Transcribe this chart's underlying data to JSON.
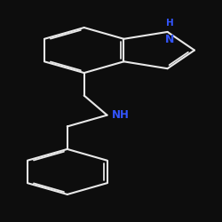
{
  "background_color": "#0d0d0d",
  "bond_color": "#e8e8e8",
  "atom_color_N": "#3355ff",
  "bond_width": 1.5,
  "font_size_N": 8.5,
  "indole_N_label": "N",
  "indole_H_label": "H",
  "amine_NH_label": "NH",
  "figsize": [
    2.5,
    2.5
  ],
  "dpi": 100
}
